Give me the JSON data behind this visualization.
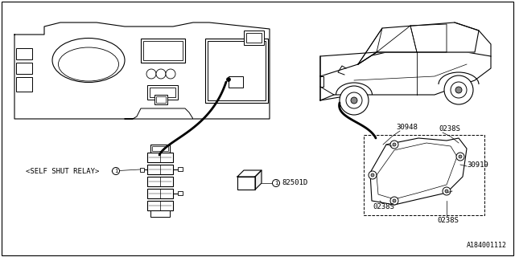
{
  "background_color": "#ffffff",
  "border_color": "#000000",
  "line_color": "#000000",
  "text_color": "#000000",
  "diagram_id": "A184001112",
  "label_self_shut_relay": "<SELF SHUT RELAY>",
  "label_82501D": "82501D",
  "label_30948": "30948",
  "label_0238S_1": "0238S",
  "label_30919": "30919",
  "label_0238S_2": "0238S",
  "label_0238S_3": "0238S",
  "font_size": 6.5,
  "font_size_id": 6,
  "fig_width": 6.4,
  "fig_height": 3.2,
  "dpi": 100
}
